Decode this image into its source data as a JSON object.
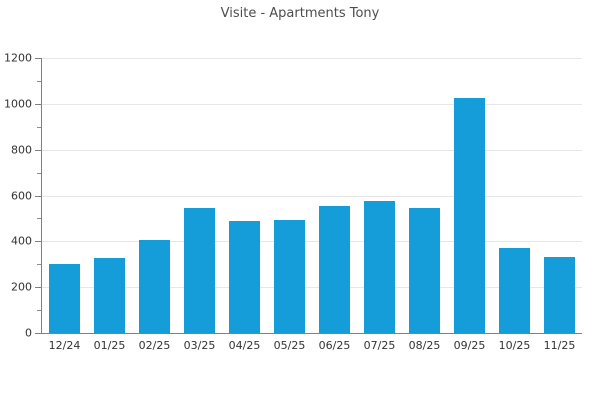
{
  "chart_data": {
    "type": "bar",
    "title": "Visite - Apartments Tony",
    "categories": [
      "12/24",
      "01/25",
      "02/25",
      "03/25",
      "04/25",
      "05/25",
      "06/25",
      "07/25",
      "08/25",
      "09/25",
      "10/25",
      "11/25"
    ],
    "values": [
      300,
      327,
      406,
      546,
      490,
      492,
      554,
      578,
      546,
      1026,
      371,
      332
    ],
    "xlabel": "",
    "ylabel": "",
    "ylim": [
      0,
      1200
    ],
    "y_major_ticks": [
      0,
      200,
      400,
      600,
      800,
      1000,
      1200
    ],
    "y_minor_step": 100,
    "grid": "horizontal-major-only",
    "legend": "none",
    "bar_color": "#149dd8",
    "axis_color": "#808080",
    "gridline_color": "#e7e7e7",
    "tick_label_color": "#333333",
    "title_color": "#4d4d4d"
  }
}
